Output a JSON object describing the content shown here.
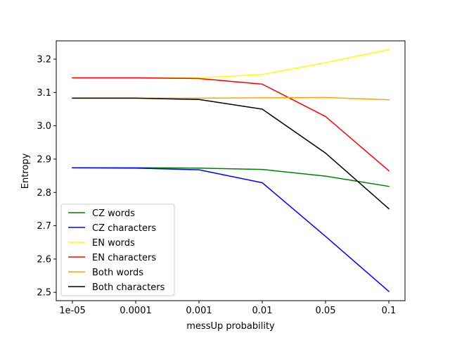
{
  "chart_data": {
    "type": "line",
    "title": "",
    "xlabel": "messUp probability",
    "ylabel": "Entropy",
    "x_scale": "categorical",
    "categories": [
      "1e-05",
      "0.0001",
      "0.001",
      "0.01",
      "0.05",
      "0.1"
    ],
    "yticks": [
      "2.5",
      "2.6",
      "2.7",
      "2.8",
      "2.9",
      "3.0",
      "3.1",
      "3.2"
    ],
    "ylim": [
      2.475,
      3.255
    ],
    "grid": false,
    "legend_position": "lower-left",
    "series": [
      {
        "name": "CZ words",
        "color": "#008000",
        "values": [
          2.874,
          2.874,
          2.873,
          2.869,
          2.849,
          2.818
        ]
      },
      {
        "name": "CZ characters",
        "color": "#0000ff",
        "values": [
          2.874,
          2.873,
          2.868,
          2.829,
          2.668,
          2.503
        ]
      },
      {
        "name": "EN words",
        "color": "#ffff00",
        "values": [
          3.144,
          3.144,
          3.144,
          3.154,
          3.19,
          3.229
        ]
      },
      {
        "name": "EN characters",
        "color": "#ff0000",
        "values": [
          3.144,
          3.144,
          3.142,
          3.125,
          3.028,
          2.865
        ]
      },
      {
        "name": "Both words",
        "color": "#ffa500",
        "values": [
          3.083,
          3.083,
          3.083,
          3.084,
          3.085,
          3.078
        ]
      },
      {
        "name": "Both characters",
        "color": "#000000",
        "values": [
          3.083,
          3.083,
          3.079,
          3.05,
          2.918,
          2.751
        ]
      }
    ]
  }
}
